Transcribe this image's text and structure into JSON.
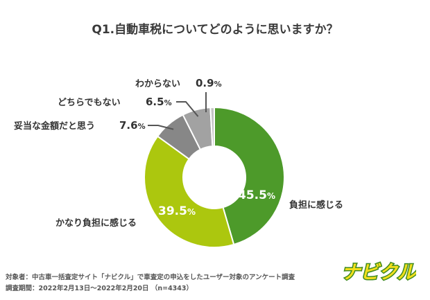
{
  "title": "Q1.自動車税についてどのように思いますか？",
  "chart_data": {
    "type": "pie",
    "donut": true,
    "title": "Q1.自動車税についてどのように思いますか？",
    "categories": [
      "負担に感じる",
      "かなり負担に感じる",
      "妥当な金額だと思う",
      "どちらでもない",
      "わからない"
    ],
    "values": [
      45.5,
      39.5,
      7.6,
      6.5,
      0.9
    ],
    "value_labels": [
      "45.5",
      "39.5",
      "7.6",
      "6.5",
      "0.9"
    ],
    "unit": "%",
    "colors": [
      "#4d9a2a",
      "#acc70e",
      "#878787",
      "#a2a2a2",
      "#c4c4c4"
    ]
  },
  "footer": {
    "line1": "対象者：中古車一括査定サイト「ナビクル」で車査定の申込をしたユーザー対象のアンケート調査",
    "line2": "調査期間：2022年2月13日～2022年2月20日 （n=4343）"
  },
  "logo": {
    "text": "ナビクル",
    "fill": "#f2df1c",
    "stroke": "#3f8a1f"
  }
}
